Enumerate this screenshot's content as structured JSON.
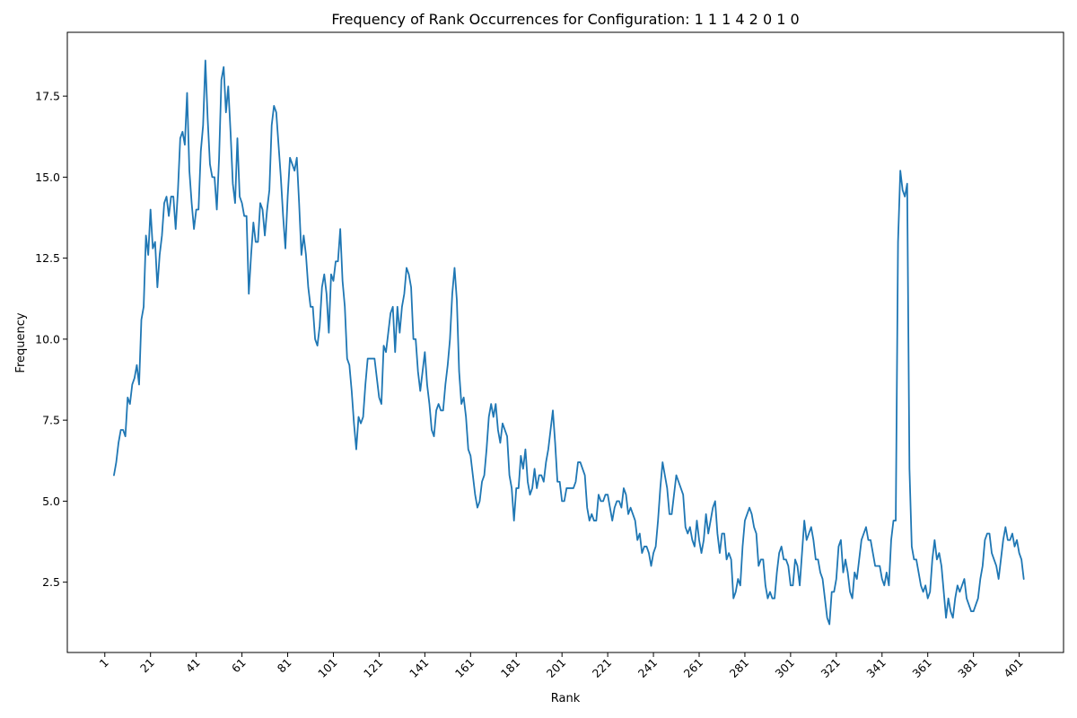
{
  "chart_data": {
    "type": "line",
    "title": "Frequency of Rank Occurrences for Configuration: 1 1 1 4 2 0 1 0",
    "xlabel": "Rank",
    "ylabel": "Frequency",
    "xlim": [
      -15.4,
      420.4
    ],
    "ylim": [
      0.33,
      19.47
    ],
    "x_ticks": [
      1,
      21,
      41,
      61,
      81,
      101,
      121,
      141,
      161,
      181,
      201,
      221,
      241,
      261,
      281,
      301,
      321,
      341,
      361,
      381,
      401
    ],
    "x_tick_labels": [
      "1",
      "21",
      "41",
      "61",
      "81",
      "101",
      "121",
      "141",
      "161",
      "181",
      "201",
      "221",
      "241",
      "261",
      "281",
      "301",
      "321",
      "341",
      "361",
      "381",
      "401"
    ],
    "y_ticks": [
      2.5,
      5.0,
      7.5,
      10.0,
      12.5,
      15.0,
      17.5
    ],
    "y_tick_labels": [
      "2.5",
      "5.0",
      "7.5",
      "10.0",
      "12.5",
      "15.0",
      "17.5"
    ],
    "x_start": 5,
    "series": [
      {
        "color": "#1f77b4",
        "values": [
          5.8,
          6.2,
          6.8,
          7.2,
          7.2,
          7.0,
          8.2,
          8.0,
          8.6,
          8.8,
          9.2,
          8.6,
          10.6,
          11.0,
          13.2,
          12.6,
          14.0,
          12.8,
          13.0,
          11.6,
          12.6,
          13.2,
          14.2,
          14.4,
          13.8,
          14.4,
          14.4,
          13.4,
          14.6,
          16.2,
          16.4,
          16.0,
          17.6,
          15.2,
          14.2,
          13.4,
          14.0,
          14.0,
          15.8,
          16.6,
          18.6,
          16.8,
          15.4,
          15.0,
          15.0,
          14.0,
          15.6,
          18.0,
          18.4,
          17.0,
          17.8,
          16.4,
          14.8,
          14.2,
          16.2,
          14.4,
          14.2,
          13.8,
          13.8,
          11.4,
          12.6,
          13.6,
          13.0,
          13.0,
          14.2,
          14.0,
          13.2,
          14.0,
          14.6,
          16.6,
          17.2,
          17.0,
          16.0,
          15.0,
          13.8,
          12.8,
          14.4,
          15.6,
          15.4,
          15.2,
          15.6,
          14.2,
          12.6,
          13.2,
          12.6,
          11.6,
          11.0,
          11.0,
          10.0,
          9.8,
          10.4,
          11.6,
          12.0,
          11.4,
          10.2,
          12.0,
          11.8,
          12.4,
          12.4,
          13.4,
          11.8,
          11.0,
          9.4,
          9.2,
          8.4,
          7.4,
          6.6,
          7.6,
          7.4,
          7.6,
          8.6,
          9.4,
          9.4,
          9.4,
          9.4,
          8.8,
          8.2,
          8.0,
          9.8,
          9.6,
          10.2,
          10.8,
          11.0,
          9.6,
          11.0,
          10.2,
          11.0,
          11.4,
          12.2,
          12.0,
          11.6,
          10.0,
          10.0,
          9.0,
          8.4,
          9.0,
          9.6,
          8.6,
          8.0,
          7.2,
          7.0,
          7.8,
          8.0,
          7.8,
          7.8,
          8.6,
          9.2,
          10.0,
          11.4,
          12.2,
          11.2,
          9.0,
          8.0,
          8.2,
          7.6,
          6.6,
          6.4,
          5.8,
          5.2,
          4.8,
          5.0,
          5.6,
          5.8,
          6.6,
          7.6,
          8.0,
          7.6,
          8.0,
          7.2,
          6.8,
          7.4,
          7.2,
          7.0,
          5.8,
          5.4,
          4.4,
          5.4,
          5.4,
          6.4,
          6.0,
          6.6,
          5.6,
          5.2,
          5.4,
          6.0,
          5.4,
          5.8,
          5.8,
          5.6,
          6.2,
          6.6,
          7.2,
          7.8,
          6.8,
          5.6,
          5.6,
          5.0,
          5.0,
          5.4,
          5.4,
          5.4,
          5.4,
          5.6,
          6.2,
          6.2,
          6.0,
          5.8,
          4.8,
          4.4,
          4.6,
          4.4,
          4.4,
          5.2,
          5.0,
          5.0,
          5.2,
          5.2,
          4.8,
          4.4,
          4.8,
          5.0,
          5.0,
          4.8,
          5.4,
          5.2,
          4.6,
          4.8,
          4.6,
          4.4,
          3.8,
          4.0,
          3.4,
          3.6,
          3.6,
          3.4,
          3.0,
          3.4,
          3.6,
          4.4,
          5.4,
          6.2,
          5.8,
          5.4,
          4.6,
          4.6,
          5.2,
          5.8,
          5.6,
          5.4,
          5.2,
          4.2,
          4.0,
          4.2,
          3.8,
          3.6,
          4.4,
          3.8,
          3.4,
          3.8,
          4.6,
          4.0,
          4.4,
          4.8,
          5.0,
          4.0,
          3.4,
          4.0,
          4.0,
          3.2,
          3.4,
          3.2,
          2.0,
          2.2,
          2.6,
          2.4,
          3.6,
          4.4,
          4.6,
          4.8,
          4.6,
          4.2,
          4.0,
          3.0,
          3.2,
          3.2,
          2.4,
          2.0,
          2.2,
          2.0,
          2.0,
          2.8,
          3.4,
          3.6,
          3.2,
          3.2,
          3.0,
          2.4,
          2.4,
          3.2,
          3.0,
          2.4,
          3.4,
          4.4,
          3.8,
          4.0,
          4.2,
          3.8,
          3.2,
          3.2,
          2.8,
          2.6,
          2.0,
          1.4,
          1.2,
          2.2,
          2.2,
          2.6,
          3.6,
          3.8,
          2.8,
          3.2,
          2.8,
          2.2,
          2.0,
          2.8,
          2.6,
          3.2,
          3.8,
          4.0,
          4.2,
          3.8,
          3.8,
          3.4,
          3.0,
          3.0,
          3.0,
          2.6,
          2.4,
          2.8,
          2.4,
          3.8,
          4.4,
          4.4,
          13.0,
          15.2,
          14.6,
          14.4,
          14.8,
          6.0,
          3.6,
          3.2,
          3.2,
          2.8,
          2.4,
          2.2,
          2.4,
          2.0,
          2.2,
          3.2,
          3.8,
          3.2,
          3.4,
          3.0,
          2.2,
          1.4,
          2.0,
          1.6,
          1.4,
          2.0,
          2.4,
          2.2,
          2.4,
          2.6,
          2.0,
          1.8,
          1.6,
          1.6,
          1.8,
          2.0,
          2.6,
          3.0,
          3.8,
          4.0,
          4.0,
          3.4,
          3.2,
          3.0,
          2.6,
          3.2,
          3.8,
          4.2,
          3.8,
          3.8,
          4.0,
          3.6,
          3.8,
          3.4,
          3.2,
          2.6
        ]
      }
    ]
  }
}
